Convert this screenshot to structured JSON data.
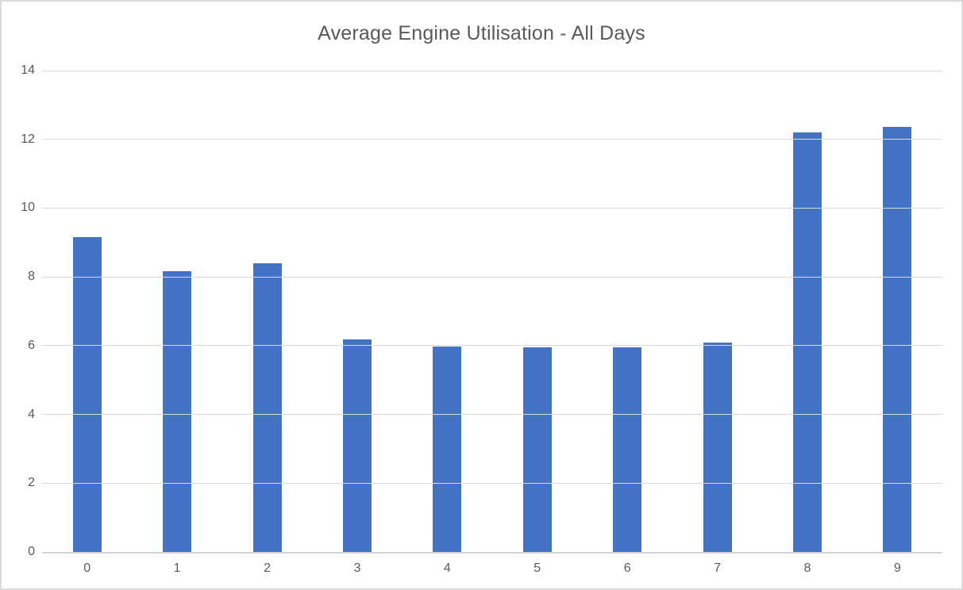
{
  "chart_data": {
    "type": "bar",
    "title": "Average Engine Utilisation - All Days",
    "categories": [
      "0",
      "1",
      "2",
      "3",
      "4",
      "5",
      "6",
      "7",
      "8",
      "9"
    ],
    "values": [
      9.15,
      8.16,
      8.39,
      6.19,
      5.98,
      5.94,
      5.96,
      6.1,
      12.21,
      12.37
    ],
    "xlabel": "",
    "ylabel": "",
    "ylim": [
      0,
      14
    ],
    "yticks": [
      0,
      2,
      4,
      6,
      8,
      10,
      12,
      14
    ],
    "grid": true,
    "legend": false,
    "colors": {
      "bar": "#4472c4",
      "gridline": "#dbdbdb",
      "axis_line": "#d2d2d2",
      "text": "#595959",
      "frame_border": "#d9d9d9",
      "background": "#ffffff"
    }
  }
}
